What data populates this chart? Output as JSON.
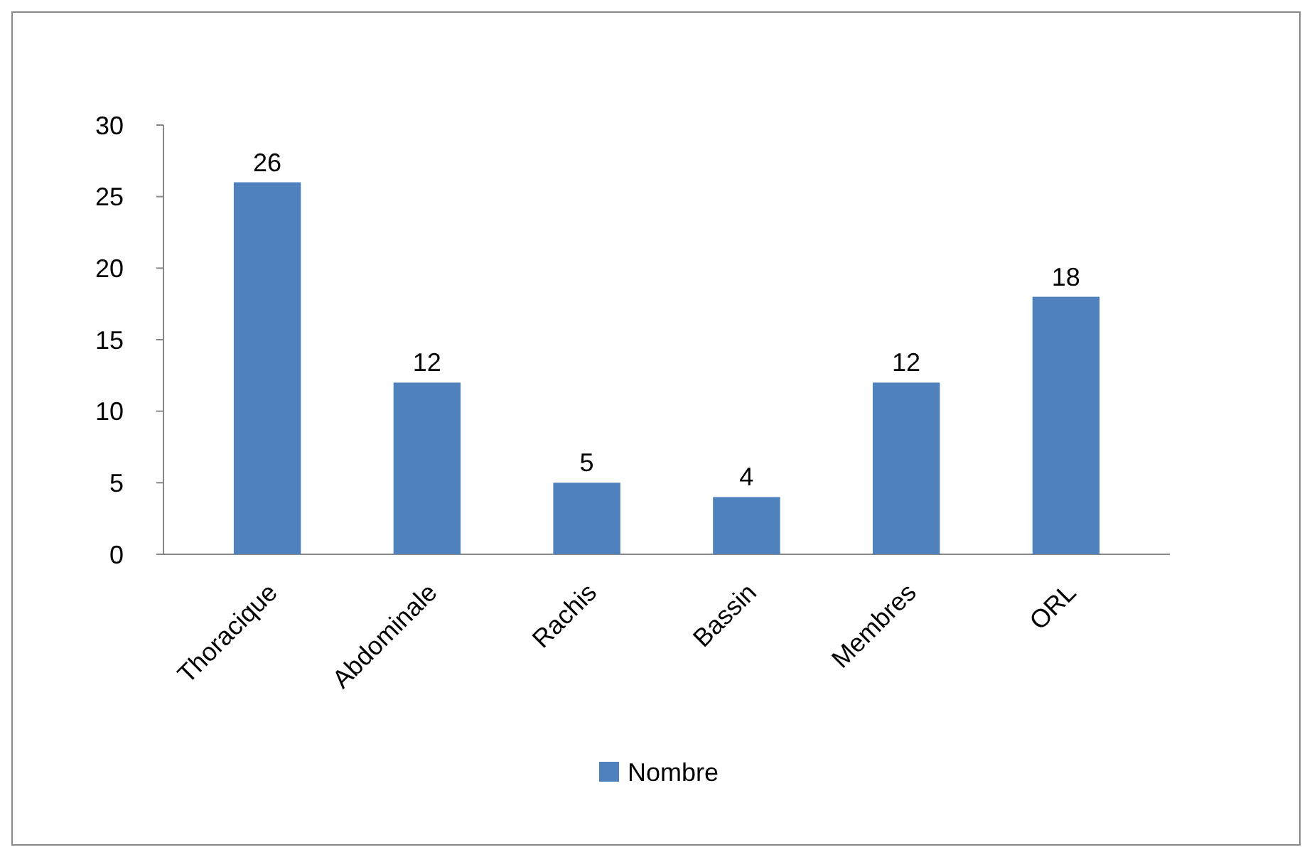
{
  "chart_data": {
    "type": "bar",
    "categories": [
      "Thoracique",
      "Abdominale",
      "Rachis",
      "Bassin",
      "Membres",
      "ORL"
    ],
    "series": [
      {
        "name": "Nombre",
        "color": "#4f81bd",
        "values": [
          26,
          12,
          5,
          4,
          12,
          18
        ]
      }
    ],
    "ylim": [
      0,
      30
    ],
    "yticks": [
      0,
      5,
      10,
      15,
      20,
      25,
      30
    ],
    "data_labels": true,
    "legend": "bottom",
    "grid": false
  }
}
